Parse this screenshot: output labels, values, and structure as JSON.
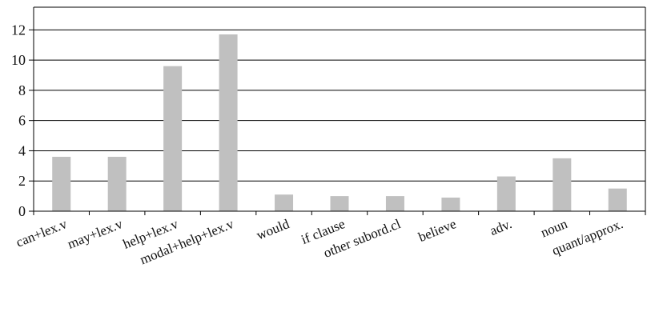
{
  "chart_data": {
    "type": "bar",
    "title": "",
    "xlabel": "",
    "ylabel": "",
    "ylim": [
      0,
      13.5
    ],
    "yticks": [
      0,
      2,
      4,
      6,
      8,
      10,
      12
    ],
    "grid": "horizontal",
    "legend": "none",
    "categories": [
      "can+lex.v",
      "may+lex.v",
      "help+lex.v",
      "modal+help+lex.v",
      "would",
      "if clause",
      "other subord.cl",
      "believe",
      "adv.",
      "noun",
      "quant/approx."
    ],
    "values": [
      3.6,
      3.6,
      9.6,
      11.7,
      1.1,
      1.0,
      1.0,
      0.9,
      2.3,
      3.5,
      1.5
    ],
    "bar_color": "#c0c0c0",
    "axis_color": "#000000"
  }
}
